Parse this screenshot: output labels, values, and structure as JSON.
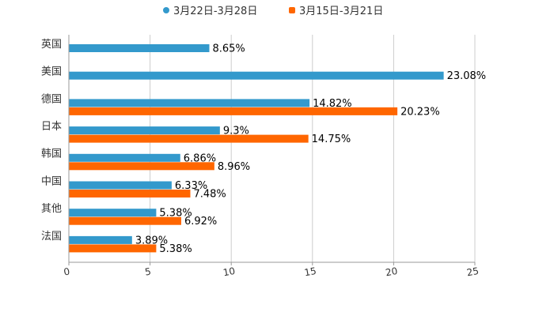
{
  "chart_data": {
    "type": "bar",
    "orientation": "horizontal",
    "categories": [
      "英国",
      "美国",
      "德国",
      "日本",
      "韩国",
      "中国",
      "其他",
      "法国"
    ],
    "series": [
      {
        "name": "3月22日-3月28日",
        "color": "#3399cc",
        "values": [
          8.65,
          23.08,
          14.82,
          9.3,
          6.86,
          6.33,
          5.38,
          3.89
        ],
        "labels": [
          "8.65%",
          "23.08%",
          "14.82%",
          "9.3%",
          "6.86%",
          "6.33%",
          "5.38%",
          "3.89%"
        ]
      },
      {
        "name": "3月15日-3月21日",
        "color": "#ff6600",
        "values": [
          null,
          null,
          20.23,
          14.75,
          8.96,
          7.48,
          6.92,
          5.38
        ],
        "labels": [
          "",
          "",
          "20.23%",
          "14.75%",
          "8.96%",
          "7.48%",
          "6.92%",
          "5.38%"
        ]
      }
    ],
    "xlim": [
      0,
      25
    ],
    "xticks": [
      "0",
      "5",
      "10",
      "15",
      "20",
      "25"
    ],
    "grid": true,
    "legend_position": "top-center",
    "title": "",
    "xlabel": "",
    "ylabel": ""
  }
}
